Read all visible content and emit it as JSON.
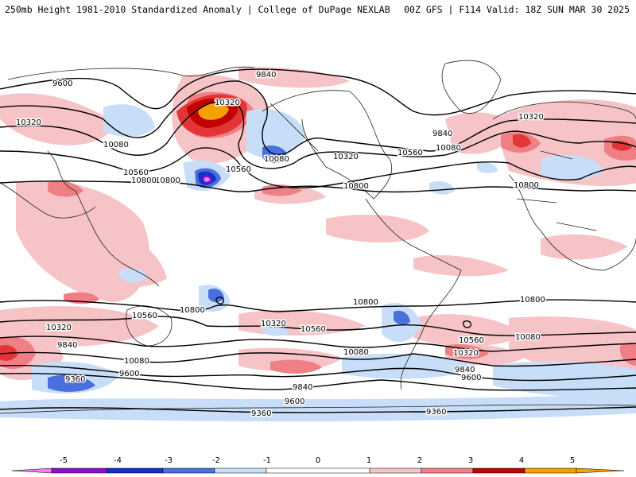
{
  "header": {
    "left": "250mb Height 1981-2010 Standardized Anomaly | College of DuPage NEXLAB",
    "right": "00Z GFS | F114 Valid: 18Z SUN MAR 30 2025"
  },
  "colors": {
    "m5": "#f07ef0",
    "m4": "#8a0fc9",
    "m3": "#1431c8",
    "m2": "#4a70e0",
    "m1": "#c8def8",
    "p1": "#f6c3c6",
    "p2": "#ef7f84",
    "p3": "#e23535",
    "p4": "#c00000",
    "p5": "#f4a100"
  },
  "colorbar": {
    "ticks": [
      "-5",
      "-4",
      "-3",
      "-2",
      "-1",
      "0",
      "1",
      "2",
      "3",
      "4",
      "5"
    ]
  },
  "contour_labels": [
    "9600",
    "9840",
    "10320",
    "10080",
    "10560",
    "10800",
    "10320",
    "10080",
    "10560",
    "10320",
    "10080",
    "10800",
    "9840",
    "10080",
    "10560",
    "10320",
    "10800",
    "10800",
    "10800",
    "10800",
    "10560",
    "10320",
    "10320",
    "10560",
    "10320",
    "10560",
    "9840",
    "10080",
    "10080",
    "10080",
    "10320",
    "9840",
    "9600",
    "9840",
    "9600",
    "9360",
    "9600",
    "9360",
    "9360",
    "10800"
  ]
}
